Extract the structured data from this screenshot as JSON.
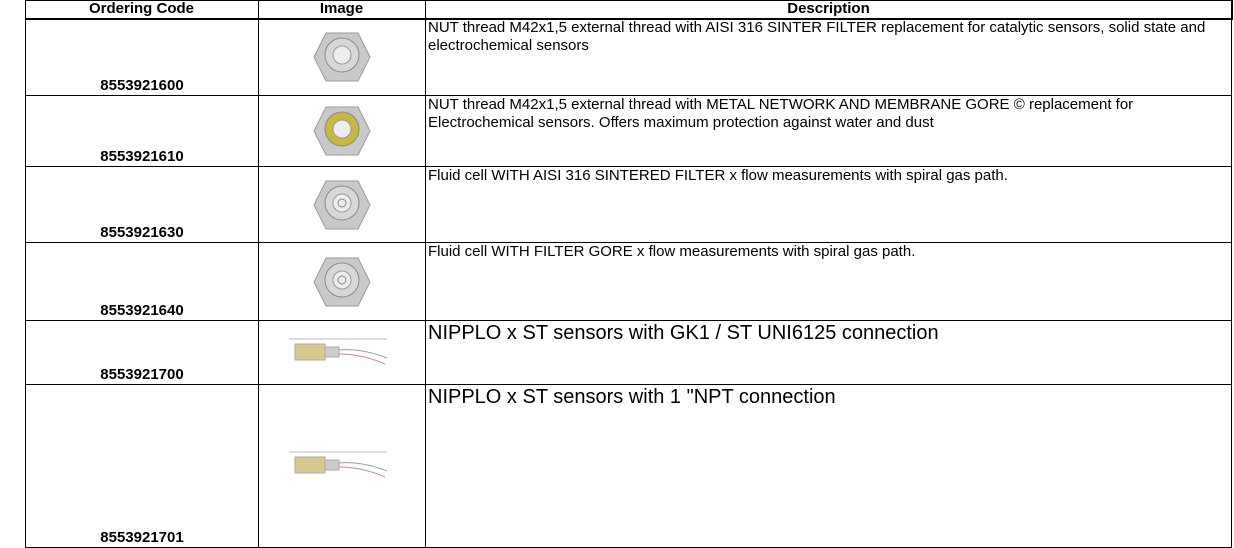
{
  "table": {
    "header": [
      "Ordering Code",
      "Image",
      "Description"
    ],
    "rows": [
      [
        "8553921600",
        "NUT thread M42x1,5 external thread with AISI 316 SINTER FILTER replacement for catalytic sensors, solid state and electrochemical sensors"
      ],
      [
        "8553921610",
        "NUT thread M42x1,5 external thread with METAL NETWORK AND MEMBRANE GORE © replacement for Electrochemical sensors. Offers maximum protection against water and dust"
      ],
      [
        "8553921630",
        "Fluid cell WITH AISI 316 SINTERED FILTER x flow measurements with spiral gas path."
      ],
      [
        "8553921640",
        "Fluid cell WITH FILTER GORE x flow measurements with spiral gas path."
      ],
      [
        "8553921700",
        "NIPPLO x ST sensors with GK1 / ST UNI6125 connection"
      ],
      [
        "8553921701",
        "NIPPLO x ST sensors with 1 \"NPT connection"
      ]
    ]
  }
}
